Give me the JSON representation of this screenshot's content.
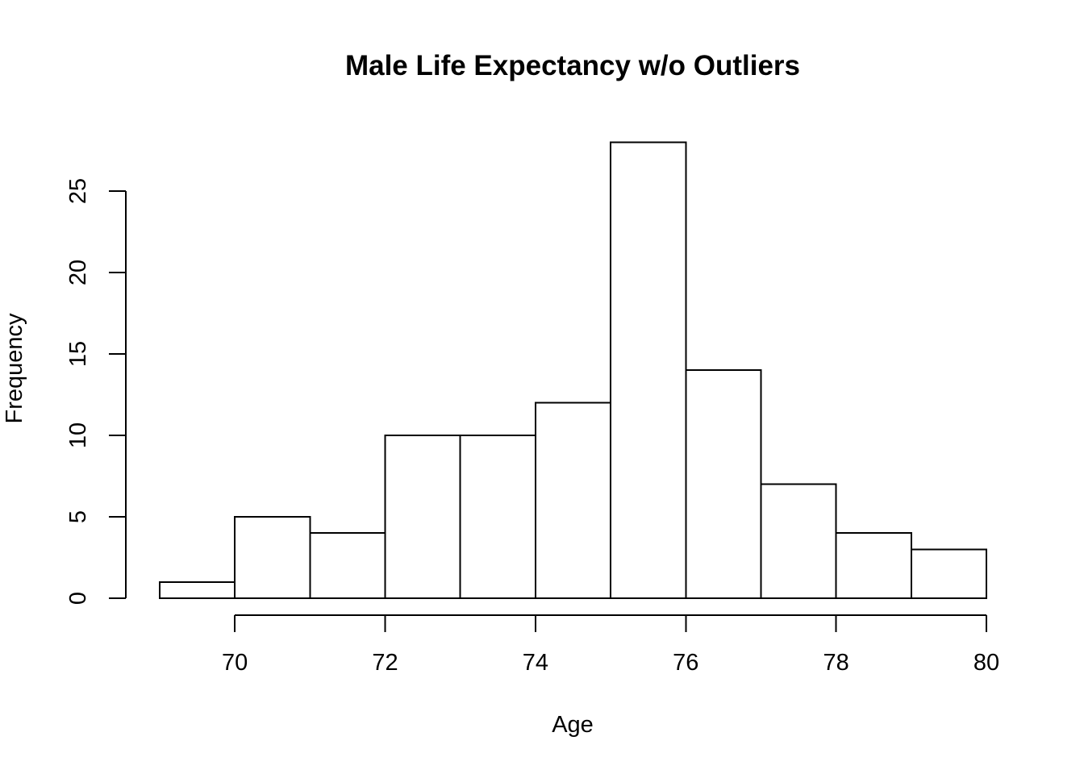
{
  "chart_data": {
    "type": "bar",
    "chart_kind": "histogram",
    "title": "Male Life Expectancy w/o Outliers",
    "xlabel": "Age",
    "ylabel": "Frequency",
    "bin_edges": [
      69,
      70,
      71,
      72,
      73,
      74,
      75,
      76,
      77,
      78,
      79,
      80
    ],
    "values": [
      1,
      5,
      4,
      10,
      10,
      12,
      28,
      14,
      7,
      4,
      3
    ],
    "x_ticks": [
      70,
      72,
      74,
      76,
      78,
      80
    ],
    "y_ticks": [
      0,
      5,
      10,
      15,
      20,
      25
    ],
    "xlim": [
      69,
      80
    ],
    "ylim": [
      0,
      28
    ],
    "grid": false,
    "bar_fill": "#ffffff",
    "line_color": "#000000",
    "background": "#ffffff"
  }
}
